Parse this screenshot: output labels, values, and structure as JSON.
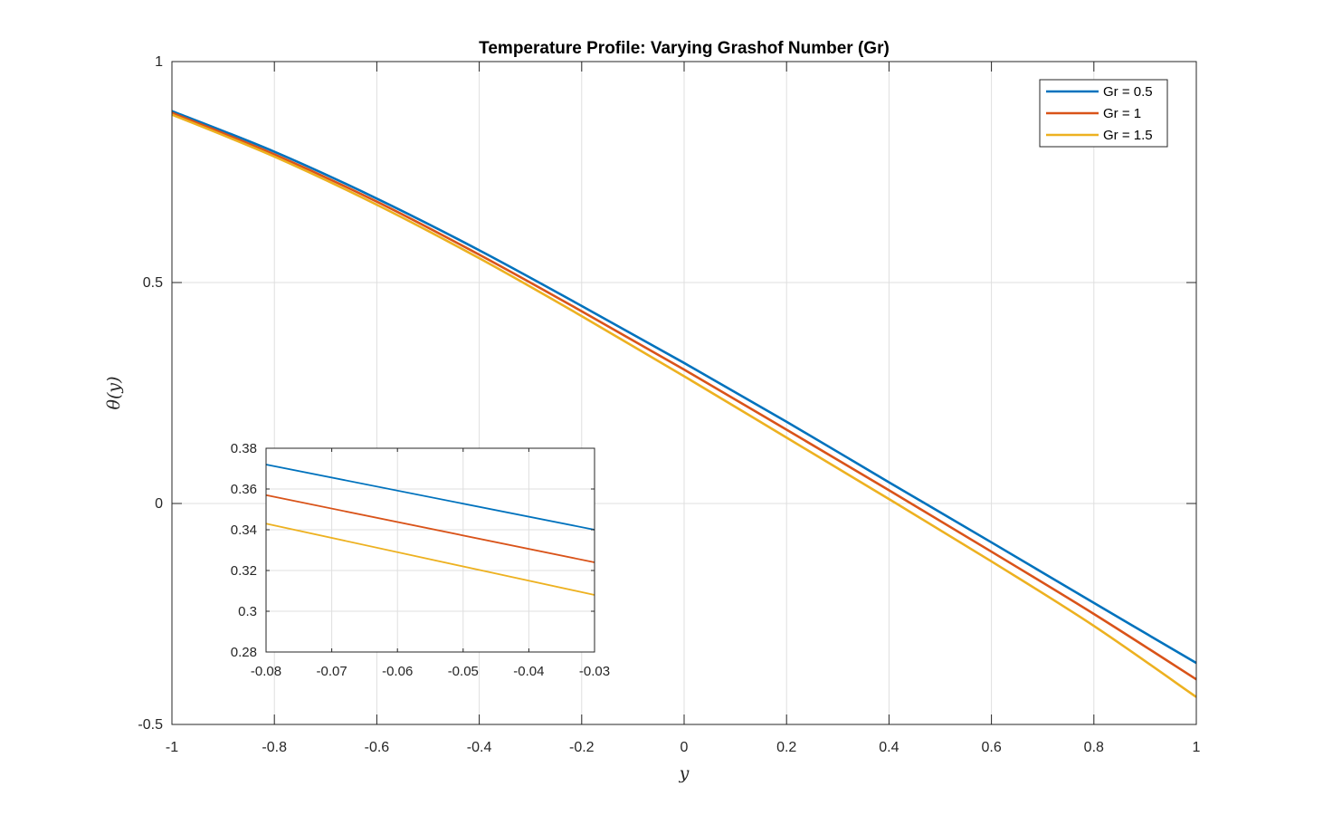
{
  "chart_data": [
    {
      "type": "line",
      "title": "Temperature Profile: Varying Grashof Number (Gr)",
      "xlabel": "y",
      "ylabel": "θ(y)",
      "xlim": [
        -1,
        1
      ],
      "ylim": [
        -0.5,
        1
      ],
      "xticks": [
        -1,
        -0.8,
        -0.6,
        -0.4,
        -0.2,
        0,
        0.2,
        0.4,
        0.6,
        0.8,
        1
      ],
      "xtick_labels": [
        "-1",
        "-0.8",
        "-0.6",
        "-0.4",
        "-0.2",
        "0",
        "0.2",
        "0.4",
        "0.6",
        "0.8",
        "1"
      ],
      "yticks": [
        -0.5,
        0,
        0.5,
        1
      ],
      "ytick_labels": [
        "-0.5",
        "0",
        "0.5",
        "1"
      ],
      "grid": true,
      "legend_position": "top-right",
      "x": [
        -1,
        -0.8,
        -0.6,
        -0.4,
        -0.2,
        0,
        0.2,
        0.4,
        0.6,
        0.8,
        1
      ],
      "series": [
        {
          "name": "Gr = 0.5",
          "color": "#0072BD",
          "values": [
            0.888,
            0.796,
            0.69,
            0.573,
            0.447,
            0.318,
            0.185,
            0.048,
            -0.088,
            -0.225,
            -0.361
          ]
        },
        {
          "name": "Gr = 1",
          "color": "#D95319",
          "values": [
            0.884,
            0.79,
            0.683,
            0.563,
            0.435,
            0.303,
            0.167,
            0.03,
            -0.109,
            -0.25,
            -0.398
          ]
        },
        {
          "name": "Gr = 1.5",
          "color": "#EDB120",
          "values": [
            0.88,
            0.785,
            0.676,
            0.555,
            0.424,
            0.288,
            0.149,
            0.01,
            -0.131,
            -0.277,
            -0.438
          ]
        }
      ]
    },
    {
      "type": "line",
      "title": "",
      "xlim": [
        -0.08,
        -0.03
      ],
      "ylim": [
        0.28,
        0.38
      ],
      "xticks": [
        -0.08,
        -0.07,
        -0.06,
        -0.05,
        -0.04,
        -0.03
      ],
      "xtick_labels": [
        "-0.08",
        "-0.07",
        "-0.06",
        "-0.05",
        "-0.04",
        "-0.03"
      ],
      "yticks": [
        0.28,
        0.3,
        0.32,
        0.34,
        0.36,
        0.38
      ],
      "ytick_labels": [
        "0.28",
        "0.3",
        "0.32",
        "0.34",
        "0.36",
        "0.38"
      ],
      "grid": true,
      "x": [
        -0.08,
        -0.03
      ],
      "series": [
        {
          "name": "Gr = 0.5",
          "color": "#0072BD",
          "values": [
            0.372,
            0.34
          ]
        },
        {
          "name": "Gr = 1",
          "color": "#D95319",
          "values": [
            0.357,
            0.324
          ]
        },
        {
          "name": "Gr = 1.5",
          "color": "#EDB120",
          "values": [
            0.343,
            0.308
          ]
        }
      ]
    }
  ]
}
